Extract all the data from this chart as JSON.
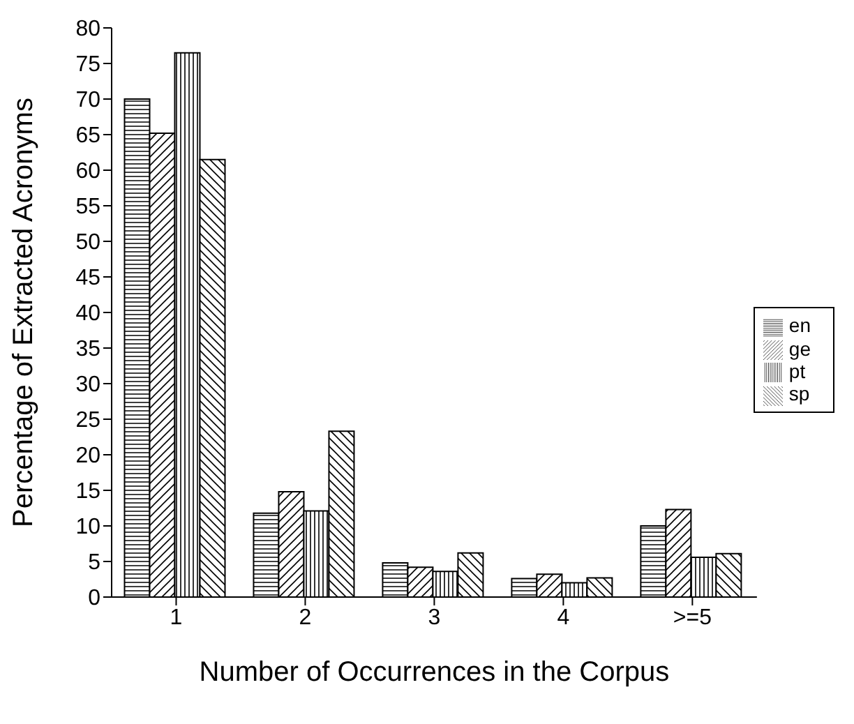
{
  "chart_data": {
    "type": "bar",
    "xlabel": "Number of Occurrences in the Corpus",
    "ylabel": "Percentage of Extracted Acronyms",
    "categories": [
      "1",
      "2",
      "3",
      "4",
      ">=5"
    ],
    "series": [
      {
        "name": "en",
        "color": "#000000",
        "values": [
          70,
          11.8,
          4.8,
          2.6,
          10
        ]
      },
      {
        "name": "ge",
        "color": "#000000",
        "values": [
          65.2,
          14.8,
          4.2,
          3.2,
          12.3
        ]
      },
      {
        "name": "pt",
        "color": "#000000",
        "values": [
          76.5,
          12.1,
          3.6,
          2.0,
          5.6
        ]
      },
      {
        "name": "sp",
        "color": "#000000",
        "values": [
          61.5,
          23.3,
          6.2,
          2.7,
          6.1
        ]
      }
    ],
    "ylim": [
      0,
      80
    ],
    "yticks": [
      0,
      5,
      10,
      15,
      20,
      25,
      30,
      35,
      40,
      45,
      50,
      55,
      60,
      65,
      70,
      75,
      80
    ],
    "grid": false,
    "legend": "right"
  }
}
